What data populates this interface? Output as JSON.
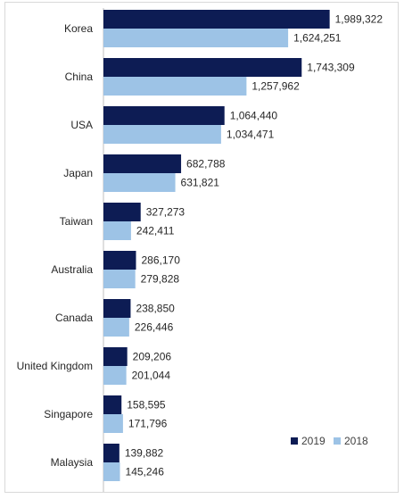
{
  "chart_data": {
    "type": "bar",
    "orientation": "horizontal",
    "categories": [
      "Korea",
      "China",
      "USA",
      "Japan",
      "Taiwan",
      "Australia",
      "Canada",
      "United Kingdom",
      "Singapore",
      "Malaysia"
    ],
    "series": [
      {
        "name": "2019",
        "color": "#0d1c54",
        "values": [
          1989322,
          1743309,
          1064440,
          682788,
          327273,
          286170,
          238850,
          209206,
          158595,
          139882
        ],
        "labels": [
          "1,989,322",
          "1,743,309",
          "1,064,440",
          "682,788",
          "327,273",
          "286,170",
          "238,850",
          "209,206",
          "158,595",
          "139,882"
        ]
      },
      {
        "name": "2018",
        "color": "#9dc3e6",
        "values": [
          1624251,
          1257962,
          1034471,
          631821,
          242411,
          279828,
          226446,
          201044,
          171796,
          145246
        ],
        "labels": [
          "1,624,251",
          "1,257,962",
          "1,034,471",
          "631,821",
          "242,411",
          "279,828",
          "226,446",
          "201,044",
          "171,796",
          "145,246"
        ]
      }
    ],
    "title": "",
    "xlabel": "",
    "ylabel": "",
    "xlim": [
      0,
      2400000
    ],
    "grid": false,
    "legend": "bottom-right",
    "data_labels": true
  }
}
